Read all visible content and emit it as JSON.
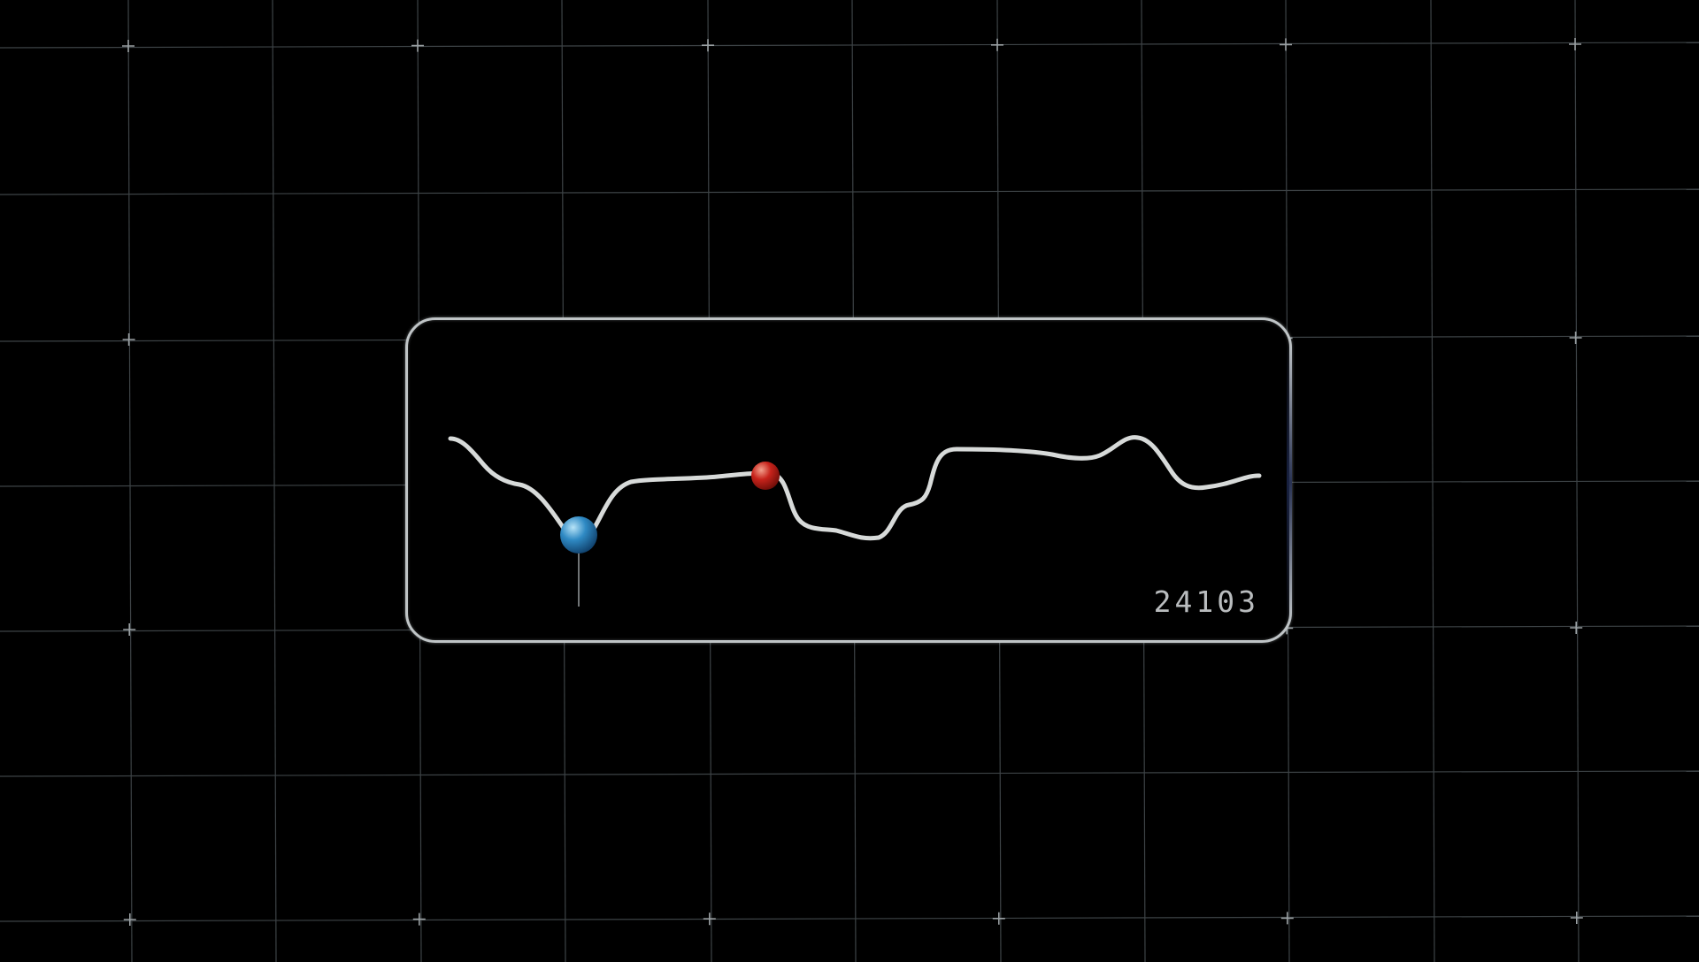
{
  "counter": "24103",
  "colors": {
    "background": "#000000",
    "grid": "#3d4346",
    "panel_border": "#bfc4c6",
    "waveform": "#d7dad9",
    "blue_marker": "#2f8ac4",
    "red_marker": "#c7231b",
    "counter_text": "#b9bcbe"
  }
}
